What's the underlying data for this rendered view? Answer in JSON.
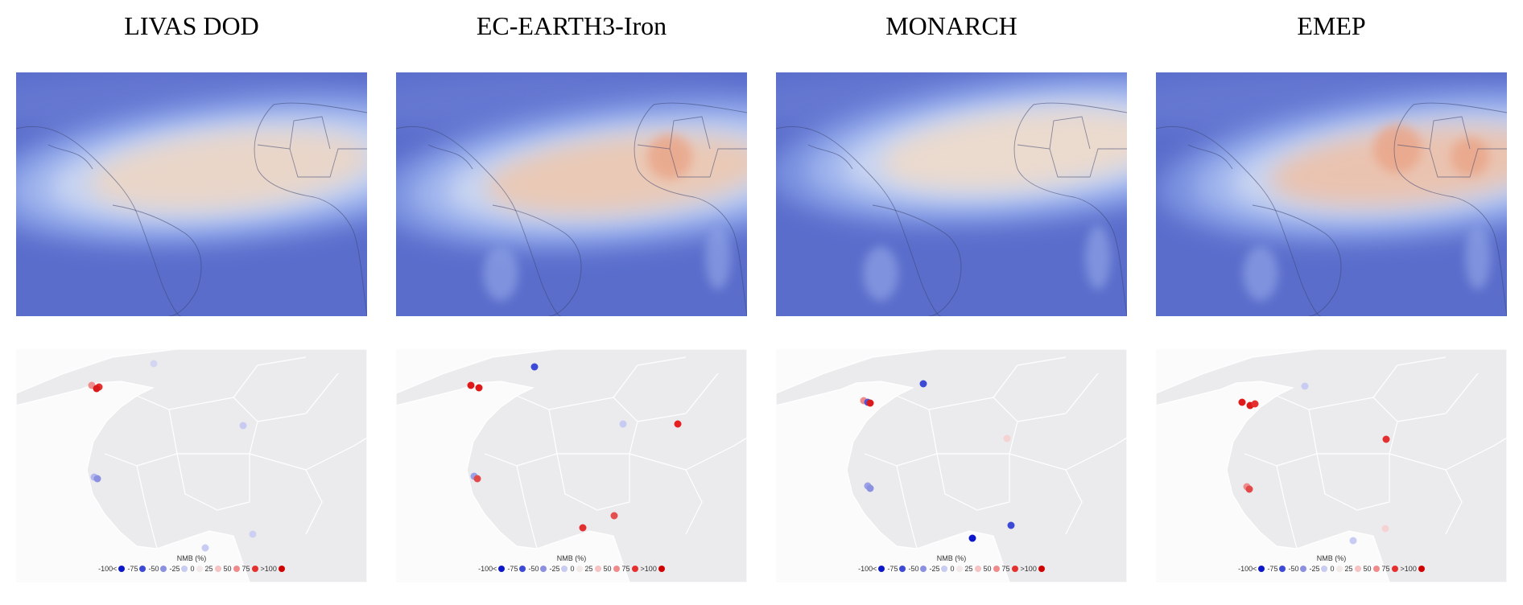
{
  "panels": [
    {
      "title": "LIVAS DOD",
      "heat": {
        "cx": 280,
        "cy": 115,
        "core": "#e9d6c9",
        "hot": []
      },
      "sites": [
        {
          "x": 94,
          "y": 45,
          "c": "#f08b8b"
        },
        {
          "x": 103,
          "y": 47,
          "c": "#e63030"
        },
        {
          "x": 100,
          "y": 49,
          "c": "#d91a1a"
        },
        {
          "x": 171,
          "y": 18,
          "c": "#d3d6f3"
        },
        {
          "x": 282,
          "y": 95,
          "c": "#c7cbf2"
        },
        {
          "x": 97,
          "y": 159,
          "c": "#b1b6ec"
        },
        {
          "x": 101,
          "y": 161,
          "c": "#8b90e0"
        },
        {
          "x": 294,
          "y": 230,
          "c": "#cdd0f3"
        },
        {
          "x": 235,
          "y": 247,
          "c": "#c9ccf2"
        }
      ]
    },
    {
      "title": "EC-EARTH3-Iron",
      "heat": {
        "cx": 300,
        "cy": 120,
        "core": "#eac9b6",
        "hot": [
          {
            "x": 340,
            "y": 105,
            "r": 28
          }
        ]
      },
      "sites": [
        {
          "x": 93,
          "y": 45,
          "c": "#e11818"
        },
        {
          "x": 103,
          "y": 48,
          "c": "#e11818"
        },
        {
          "x": 172,
          "y": 22,
          "c": "#3c4ad6"
        },
        {
          "x": 282,
          "y": 93,
          "c": "#c7cbf2"
        },
        {
          "x": 350,
          "y": 93,
          "c": "#e62020"
        },
        {
          "x": 97,
          "y": 158,
          "c": "#9aa0e6"
        },
        {
          "x": 101,
          "y": 161,
          "c": "#e24a4a"
        },
        {
          "x": 271,
          "y": 207,
          "c": "#e45050"
        },
        {
          "x": 232,
          "y": 222,
          "c": "#e23030"
        }
      ]
    },
    {
      "title": "MONARCH",
      "heat": {
        "cx": 320,
        "cy": 90,
        "core": "#ebdace",
        "hot": []
      },
      "sites": [
        {
          "x": 109,
          "y": 64,
          "c": "#f08b8b"
        },
        {
          "x": 114,
          "y": 66,
          "c": "#4a58da"
        },
        {
          "x": 117,
          "y": 67,
          "c": "#dd1a1a"
        },
        {
          "x": 183,
          "y": 43,
          "c": "#3c4ad6"
        },
        {
          "x": 287,
          "y": 111,
          "c": "#f6d3d3"
        },
        {
          "x": 114,
          "y": 170,
          "c": "#9aa0e6"
        },
        {
          "x": 117,
          "y": 173,
          "c": "#8b90e0"
        },
        {
          "x": 292,
          "y": 219,
          "c": "#3c4ad6"
        },
        {
          "x": 244,
          "y": 235,
          "c": "#0b17c8"
        }
      ]
    },
    {
      "title": "EMEP",
      "heat": {
        "cx": 330,
        "cy": 110,
        "core": "#eac3b0",
        "hot": [
          {
            "x": 300,
            "y": 95,
            "r": 30
          },
          {
            "x": 390,
            "y": 105,
            "r": 24
          }
        ]
      },
      "sites": [
        {
          "x": 107,
          "y": 66,
          "c": "#e11818"
        },
        {
          "x": 117,
          "y": 70,
          "c": "#dd1a1a"
        },
        {
          "x": 123,
          "y": 68,
          "c": "#e63030"
        },
        {
          "x": 185,
          "y": 46,
          "c": "#c9ccf2"
        },
        {
          "x": 286,
          "y": 112,
          "c": "#e23030"
        },
        {
          "x": 113,
          "y": 171,
          "c": "#f08b8b"
        },
        {
          "x": 116,
          "y": 174,
          "c": "#e24a4a"
        },
        {
          "x": 285,
          "y": 223,
          "c": "#f6d3d3"
        },
        {
          "x": 245,
          "y": 238,
          "c": "#c9ccf2"
        }
      ]
    }
  ],
  "legend": {
    "title": "NMB (%)",
    "items": [
      {
        "label": "-100<",
        "color": "#0b17c8"
      },
      {
        "label": "-75",
        "color": "#3c4ad6"
      },
      {
        "label": "-50",
        "color": "#8b90e0"
      },
      {
        "label": "-25",
        "color": "#c9ccf2"
      },
      {
        "label": "0",
        "color": "#f3e9e9"
      },
      {
        "label": "25",
        "color": "#f6c2c2"
      },
      {
        "label": "50",
        "color": "#f08b8b"
      },
      {
        "label": "75",
        "color": "#e63030"
      },
      {
        "label": ">100",
        "color": "#d10000"
      }
    ]
  }
}
